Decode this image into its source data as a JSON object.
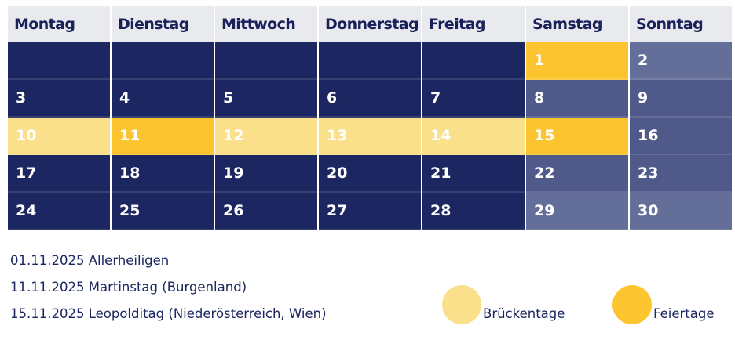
{
  "weekdays": [
    "Montag",
    "Dienstag",
    "Mittwoch",
    "Donnerstag",
    "Freitag",
    "Samstag",
    "Sonntag"
  ],
  "weeks": [
    [
      {
        "day": "",
        "type": "workday"
      },
      {
        "day": "",
        "type": "workday"
      },
      {
        "day": "",
        "type": "workday"
      },
      {
        "day": "",
        "type": "workday"
      },
      {
        "day": "",
        "type": "workday"
      },
      {
        "day": "1",
        "type": "holiday"
      },
      {
        "day": "2",
        "type": "sunday"
      }
    ],
    [
      {
        "day": "3",
        "type": "workday"
      },
      {
        "day": "4",
        "type": "workday"
      },
      {
        "day": "5",
        "type": "workday"
      },
      {
        "day": "6",
        "type": "workday"
      },
      {
        "day": "7",
        "type": "workday"
      },
      {
        "day": "8",
        "type": "saturday"
      },
      {
        "day": "9",
        "type": "saturday"
      }
    ],
    [
      {
        "day": "10",
        "type": "bridge"
      },
      {
        "day": "11",
        "type": "holiday"
      },
      {
        "day": "12",
        "type": "bridge"
      },
      {
        "day": "13",
        "type": "bridge"
      },
      {
        "day": "14",
        "type": "bridge"
      },
      {
        "day": "15",
        "type": "holiday"
      },
      {
        "day": "16",
        "type": "saturday"
      }
    ],
    [
      {
        "day": "17",
        "type": "workday"
      },
      {
        "day": "18",
        "type": "workday"
      },
      {
        "day": "19",
        "type": "workday"
      },
      {
        "day": "20",
        "type": "workday"
      },
      {
        "day": "21",
        "type": "workday"
      },
      {
        "day": "22",
        "type": "saturday"
      },
      {
        "day": "23",
        "type": "saturday"
      }
    ],
    [
      {
        "day": "24",
        "type": "workday"
      },
      {
        "day": "25",
        "type": "workday"
      },
      {
        "day": "26",
        "type": "workday"
      },
      {
        "day": "27",
        "type": "workday"
      },
      {
        "day": "28",
        "type": "workday"
      },
      {
        "day": "29",
        "type": "sunday"
      },
      {
        "day": "30",
        "type": "sunday"
      }
    ]
  ],
  "holidays": [
    "01.11.2025 Allerheiligen",
    "11.11.2025 Martinstag (Burgenland)",
    "15.11.2025 Leopolditag (Niederösterreich, Wien)"
  ],
  "legend": {
    "bridge_label": "Brückentage",
    "holiday_label": "Feiertage"
  },
  "colors": {
    "workday": "#1c2660",
    "weekend": "#4f5a8a",
    "sunday": "#646f99",
    "bridge": "#fbe08c",
    "holiday": "#fcc42e",
    "header_bg": "#e8eaee",
    "text_dark": "#1c2660"
  }
}
